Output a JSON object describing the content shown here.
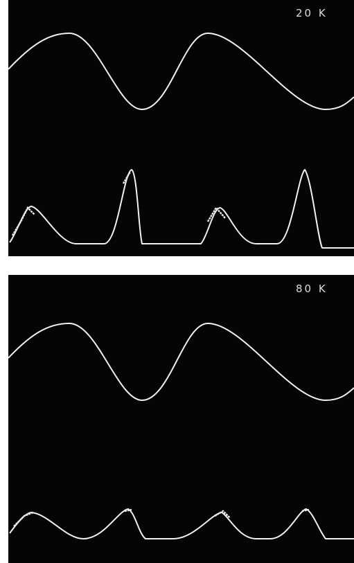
{
  "panels": [
    {
      "label": "20 K"
    },
    {
      "label": "80 K"
    }
  ]
}
